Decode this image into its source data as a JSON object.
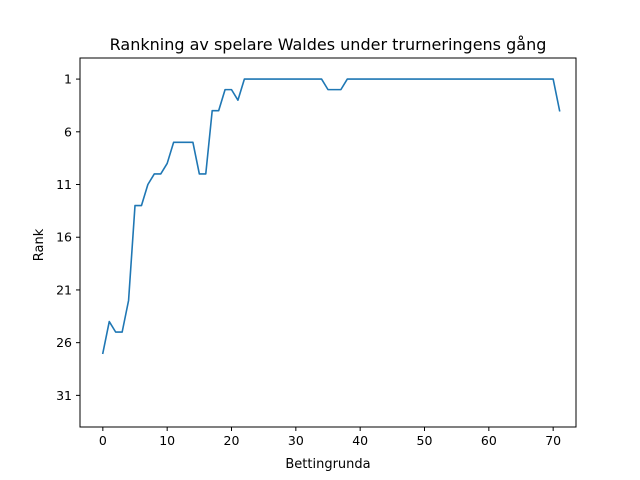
{
  "chart_data": {
    "type": "line",
    "title": "Rankning av spelare Waldes under trurneringens gång",
    "xlabel": "Bettingrunda",
    "ylabel": "Rank",
    "xlim": [
      -3.55,
      73.55
    ],
    "ylim": [
      34,
      -1
    ],
    "y_inverted": true,
    "grid": false,
    "legend": "none",
    "x_ticks": [
      0,
      10,
      20,
      30,
      40,
      50,
      60,
      70
    ],
    "y_ticks": [
      1,
      6,
      11,
      16,
      21,
      26,
      31
    ],
    "line_color": "#1f77b4",
    "series": [
      {
        "x": [
          0,
          1,
          2,
          3,
          4,
          5,
          6,
          7,
          8,
          9,
          10,
          11,
          12,
          13,
          14,
          15,
          16,
          17,
          18,
          19,
          20,
          21,
          22,
          23,
          24,
          25,
          26,
          27,
          28,
          29,
          30,
          31,
          32,
          33,
          34,
          35,
          36,
          37,
          38,
          39,
          40,
          41,
          42,
          43,
          44,
          45,
          46,
          47,
          48,
          49,
          50,
          51,
          52,
          53,
          54,
          55,
          56,
          57,
          58,
          59,
          60,
          61,
          62,
          63,
          64,
          65,
          66,
          67,
          68,
          69,
          70,
          71
        ],
        "values": [
          27,
          24,
          25,
          25,
          22,
          13,
          13,
          11,
          10,
          10,
          9,
          7,
          7,
          7,
          7,
          10,
          10,
          4,
          4,
          2,
          2,
          3,
          1,
          1,
          1,
          1,
          1,
          1,
          1,
          1,
          1,
          1,
          1,
          1,
          1,
          2,
          2,
          2,
          1,
          1,
          1,
          1,
          1,
          1,
          1,
          1,
          1,
          1,
          1,
          1,
          1,
          1,
          1,
          1,
          1,
          1,
          1,
          1,
          1,
          1,
          1,
          1,
          1,
          1,
          1,
          1,
          1,
          1,
          1,
          1,
          1,
          4
        ]
      }
    ]
  }
}
